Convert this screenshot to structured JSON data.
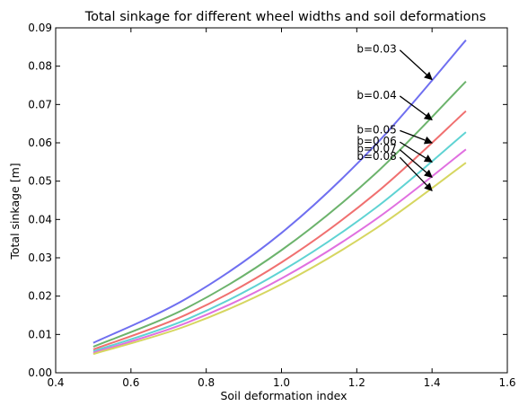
{
  "chart_data": {
    "type": "line",
    "title": "Total sinkage for different wheel widths and soil deformations",
    "xlabel": "Soil deformation index",
    "ylabel": "Total sinkage [m]",
    "xlim": [
      0.4,
      1.6
    ],
    "ylim": [
      0.0,
      0.09
    ],
    "xticks": [
      "0.4",
      "0.6",
      "0.8",
      "1.0",
      "1.2",
      "1.4",
      "1.6"
    ],
    "yticks": [
      "0.00",
      "0.01",
      "0.02",
      "0.03",
      "0.04",
      "0.05",
      "0.06",
      "0.07",
      "0.08",
      "0.09"
    ],
    "grid": false,
    "legend": "none",
    "series": [
      {
        "name": "b=0.03",
        "color": "#6f6ff0",
        "x": [
          0.5,
          0.75,
          1.0,
          1.25,
          1.49
        ],
        "y": [
          0.0078,
          0.0195,
          0.0365,
          0.0595,
          0.0868
        ]
      },
      {
        "name": "b=0.04",
        "color": "#6cb36c",
        "x": [
          0.5,
          0.75,
          1.0,
          1.25,
          1.49
        ],
        "y": [
          0.0068,
          0.017,
          0.032,
          0.052,
          0.076
        ]
      },
      {
        "name": "b=0.05",
        "color": "#f07070",
        "x": [
          0.5,
          0.75,
          1.0,
          1.25,
          1.49
        ],
        "y": [
          0.0061,
          0.0153,
          0.0288,
          0.0468,
          0.0683
        ]
      },
      {
        "name": "b=0.06",
        "color": "#5fd3d3",
        "x": [
          0.5,
          0.75,
          1.0,
          1.25,
          1.49
        ],
        "y": [
          0.0056,
          0.014,
          0.0265,
          0.043,
          0.0628
        ]
      },
      {
        "name": "b=0.07",
        "color": "#e070e0",
        "x": [
          0.5,
          0.75,
          1.0,
          1.25,
          1.49
        ],
        "y": [
          0.0052,
          0.0131,
          0.0246,
          0.04,
          0.0583
        ]
      },
      {
        "name": "b=0.08",
        "color": "#d6d660",
        "x": [
          0.5,
          0.75,
          1.0,
          1.25,
          1.49
        ],
        "y": [
          0.0049,
          0.0123,
          0.0231,
          0.0376,
          0.0548
        ]
      }
    ],
    "annotations": [
      {
        "text": "b=0.03",
        "text_x": 1.2,
        "text_y": 0.0835,
        "arrow_to_x": 1.4,
        "arrow_to_y": 0.0765
      },
      {
        "text": "b=0.04",
        "text_x": 1.2,
        "text_y": 0.0715,
        "arrow_to_x": 1.4,
        "arrow_to_y": 0.066
      },
      {
        "text": "b=0.05",
        "text_x": 1.2,
        "text_y": 0.0625,
        "arrow_to_x": 1.4,
        "arrow_to_y": 0.06
      },
      {
        "text": "b=0.06",
        "text_x": 1.2,
        "text_y": 0.0595,
        "arrow_to_x": 1.4,
        "arrow_to_y": 0.055
      },
      {
        "text": "b=0.07",
        "text_x": 1.2,
        "text_y": 0.0575,
        "arrow_to_x": 1.4,
        "arrow_to_y": 0.051
      },
      {
        "text": "b=0.08",
        "text_x": 1.2,
        "text_y": 0.0555,
        "arrow_to_x": 1.4,
        "arrow_to_y": 0.0475
      }
    ]
  }
}
